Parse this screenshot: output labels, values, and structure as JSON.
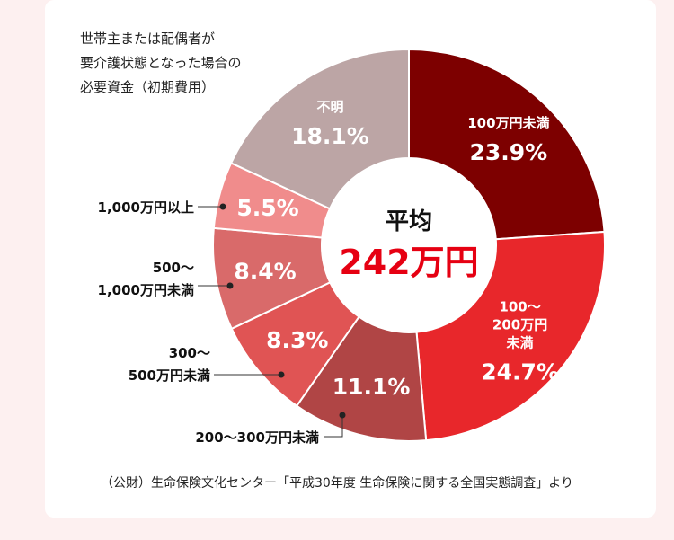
{
  "title_lines": [
    "世帯主または配偶者が",
    "要介護状態となった場合の",
    "必要資金（初期費用）"
  ],
  "center": {
    "label": "平均",
    "value": "242万円"
  },
  "source": "（公財）生命保険文化センター「平成30年度 生命保険に関する全国実態調査」より",
  "chart_data": {
    "type": "pie",
    "title": "世帯主または配偶者が要介護状態となった場合の必要資金（初期費用）",
    "unit": "%",
    "categories": [
      "100万円未満",
      "100〜200万円未満",
      "200〜300万円未満",
      "300〜500万円未満",
      "500〜1,000万円未満",
      "1,000万円以上",
      "不明"
    ],
    "values": [
      23.9,
      24.7,
      11.1,
      8.3,
      8.4,
      5.5,
      18.1
    ],
    "colors": [
      "#7d0000",
      "#e8272b",
      "#b04545",
      "#e05454",
      "#d96a6a",
      "#f08c8c",
      "#bca5a5"
    ],
    "inside_labels": [
      [
        "100万円未満"
      ],
      [
        "100〜",
        "200万円",
        "未満"
      ],
      [],
      [],
      [],
      [],
      [
        "不明"
      ]
    ],
    "outside_labels": [
      [],
      [],
      [
        "200〜300万円未満"
      ],
      [
        "300〜",
        "500万円未満"
      ],
      [
        "500〜",
        "1,000万円未満"
      ],
      [
        "1,000万円以上"
      ],
      []
    ],
    "legend": "none"
  }
}
